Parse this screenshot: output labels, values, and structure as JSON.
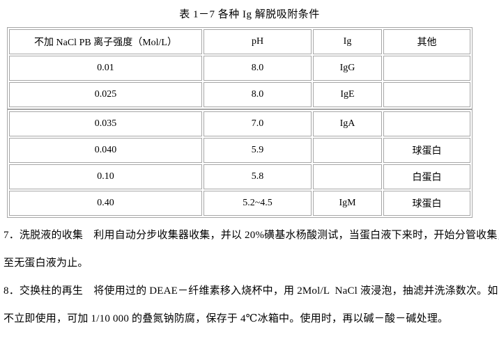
{
  "document": {
    "caption": "表 1－7 各种 Ig 解脱吸附条件",
    "table": {
      "headers": {
        "ionic": "不加 NaCl PB 离子强度（Mol/L）",
        "ph": "pH",
        "ig": "Ig",
        "other": "其他"
      },
      "rows": [
        {
          "ionic": "0.01",
          "ph": "8.0",
          "ig": "IgG",
          "other": ""
        },
        {
          "ionic": "0.025",
          "ph": "8.0",
          "ig": "IgE",
          "other": ""
        },
        {
          "ionic": "0.035",
          "ph": "7.0",
          "ig": "IgA",
          "other": ""
        },
        {
          "ionic": "0.040",
          "ph": "5.9",
          "ig": "",
          "other": "球蛋白"
        },
        {
          "ionic": "0.10",
          "ph": "5.8",
          "ig": "",
          "other": "白蛋白"
        },
        {
          "ionic": "0.40",
          "ph": "5.2~4.5",
          "ig": "IgM",
          "other": "球蛋白"
        }
      ]
    },
    "notes": [
      {
        "lines": [
          "7．洗脱液的收集　利用自动分步收集器收集，并以 20%磺基水杨酸测试，当蛋白液下来时，开始分管收集，",
          "至无蛋白液为止。"
        ]
      },
      {
        "lines": [
          "8．交换柱的再生　将使用过的 DEAE－纤维素移入烧杯中，用 2Mol/L  NaCl 液浸泡，抽滤并洗涤数次。如",
          "不立即使用，可加 1/10 000 的叠氮钠防腐，保存于 4℃冰箱中。使用时，再以碱－酸－碱处理。"
        ]
      }
    ],
    "colors": {
      "border": "#a6a6a6",
      "text": "#000000",
      "background": "#ffffff"
    }
  }
}
